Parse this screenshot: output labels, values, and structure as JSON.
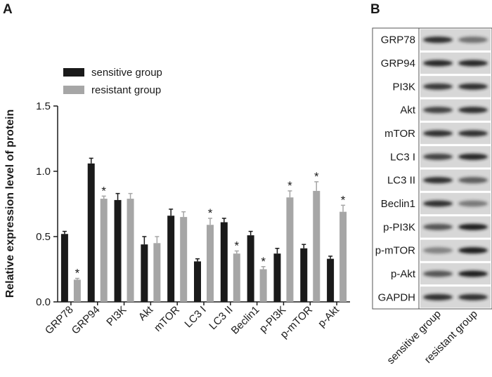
{
  "chart_data": {
    "type": "bar",
    "panel_label": "A",
    "ylabel": "Relative expression level of protein",
    "categories": [
      "GRP78",
      "GRP94",
      "PI3K",
      "Akt",
      "mTOR",
      "LC3 I",
      "LC3 II",
      "Beclin1",
      "p-PI3K",
      "p-mTOR",
      "p-Akt"
    ],
    "series": [
      {
        "name": "sensitive group",
        "color": "#1a1a1a",
        "values": [
          0.52,
          1.06,
          0.78,
          0.44,
          0.66,
          0.31,
          0.61,
          0.51,
          0.37,
          0.41,
          0.33
        ],
        "errors": [
          0.02,
          0.04,
          0.05,
          0.06,
          0.05,
          0.02,
          0.03,
          0.03,
          0.04,
          0.03,
          0.02
        ]
      },
      {
        "name": "resistant group",
        "color": "#a6a6a6",
        "values": [
          0.17,
          0.79,
          0.79,
          0.45,
          0.65,
          0.59,
          0.37,
          0.25,
          0.8,
          0.85,
          0.69
        ],
        "errors": [
          0.01,
          0.02,
          0.04,
          0.05,
          0.04,
          0.05,
          0.02,
          0.02,
          0.05,
          0.07,
          0.05
        ],
        "markers": [
          "*",
          "*",
          null,
          null,
          null,
          "*",
          "*",
          "*",
          "*",
          "*",
          "*"
        ]
      }
    ],
    "ylim": [
      0,
      1.5
    ],
    "yticks": [
      {
        "value": 0,
        "label": "0.0"
      },
      {
        "value": 0.5,
        "label": "0.5"
      },
      {
        "value": 1,
        "label": "1.0"
      },
      {
        "value": 1.5,
        "label": "1.5"
      }
    ],
    "grid": false,
    "legend": "upper left"
  },
  "blot": {
    "panel_label": "B",
    "proteins": [
      "GRP78",
      "GRP94",
      "PI3K",
      "Akt",
      "mTOR",
      "LC3 I",
      "LC3 II",
      "Beclin1",
      "p-PI3K",
      "p-mTOR",
      "p-Akt",
      "GAPDH"
    ],
    "lanes": [
      "sensitive group",
      "resistant group"
    ]
  }
}
